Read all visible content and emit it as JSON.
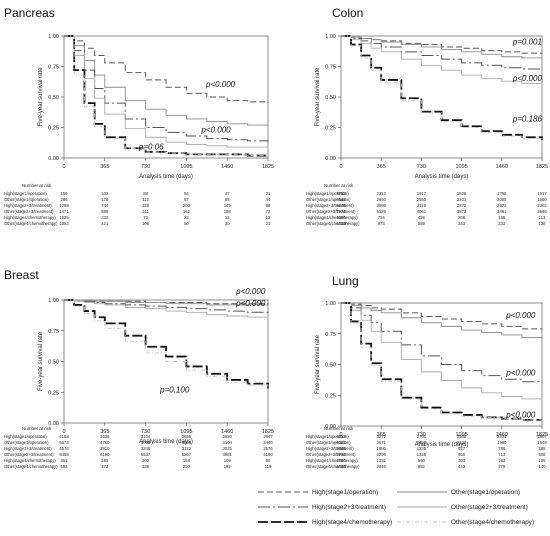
{
  "chart_data": [
    {
      "type": "line",
      "title": "Pancreas",
      "xlabel": "Analysis time (days)",
      "ylabel": "Five-year survival rate",
      "xlim": [
        0,
        1825
      ],
      "ylim": [
        0,
        1
      ],
      "xticks": [
        "0",
        "365",
        "730",
        "1095",
        "1460",
        "1825"
      ],
      "yticks": [
        "0.00",
        "0.25",
        "0.50",
        "0.75",
        "1.00"
      ],
      "x": [
        0,
        91,
        183,
        274,
        365,
        548,
        730,
        913,
        1095,
        1278,
        1460,
        1643,
        1825
      ],
      "series": [
        {
          "style": "high1",
          "values": [
            1.0,
            0.96,
            0.9,
            0.84,
            0.78,
            0.7,
            0.64,
            0.58,
            0.53,
            0.5,
            0.47,
            0.46,
            0.45
          ]
        },
        {
          "style": "other1",
          "values": [
            1.0,
            0.92,
            0.8,
            0.68,
            0.58,
            0.47,
            0.4,
            0.35,
            0.32,
            0.3,
            0.28,
            0.27,
            0.27
          ]
        },
        {
          "style": "high23",
          "values": [
            1.0,
            0.88,
            0.72,
            0.57,
            0.45,
            0.32,
            0.25,
            0.21,
            0.18,
            0.16,
            0.15,
            0.14,
            0.13
          ]
        },
        {
          "style": "other23",
          "values": [
            1.0,
            0.84,
            0.65,
            0.49,
            0.36,
            0.24,
            0.17,
            0.13,
            0.11,
            0.1,
            0.09,
            0.09,
            0.08
          ]
        },
        {
          "style": "high4",
          "values": [
            1.0,
            0.72,
            0.45,
            0.28,
            0.17,
            0.08,
            0.05,
            0.04,
            0.03,
            0.03,
            0.03,
            0.02,
            0.02
          ]
        },
        {
          "style": "other4",
          "values": [
            1.0,
            0.68,
            0.42,
            0.26,
            0.16,
            0.08,
            0.05,
            0.04,
            0.03,
            0.03,
            0.03,
            0.02,
            0.02
          ]
        }
      ],
      "annotations": [
        {
          "text": "p<0.000",
          "x": 1270,
          "y": 0.58
        },
        {
          "text": "p<0.000",
          "x": 1230,
          "y": 0.21
        },
        {
          "text": "p=0.06",
          "x": 670,
          "y": 0.07
        }
      ],
      "risk": {
        "header": "Number at risk",
        "rows": [
          {
            "label": "High(stage1/operation)",
            "values": [
              "159",
              "103",
              "88",
              "54",
              "47",
              "31"
            ]
          },
          {
            "label": "Other(stage1/operation)",
            "values": [
              "286",
              "179",
              "112",
              "87",
              "68",
              "44"
            ]
          },
          {
            "label": "High(stage2+3/treatment)",
            "values": [
              "1298",
              "744",
              "328",
              "200",
              "145",
              "98"
            ]
          },
          {
            "label": "Other(stage2+3/treatment)",
            "values": [
              "1471",
              "689",
              "311",
              "162",
              "108",
              "72"
            ]
          },
          {
            "label": "High(stage4/chemotherapy)",
            "values": [
              "1525",
              "332",
              "73",
              "22",
              "12",
              "12"
            ]
          },
          {
            "label": "Other(stage4/chemotherapy)",
            "values": [
              "1853",
              "421",
              "106",
              "50",
              "30",
              "23"
            ]
          }
        ]
      }
    },
    {
      "type": "line",
      "title": "Colon",
      "xlabel": "Analysis time (days)",
      "ylabel": "Five-year survival rate",
      "xlim": [
        0,
        1825
      ],
      "ylim": [
        0,
        1
      ],
      "xticks": [
        "0",
        "365",
        "730",
        "1095",
        "1460",
        "1825"
      ],
      "yticks": [
        "0.00",
        "0.25",
        "0.50",
        "0.75",
        "1.00"
      ],
      "x": [
        0,
        91,
        183,
        274,
        365,
        548,
        730,
        913,
        1095,
        1278,
        1460,
        1643,
        1825
      ],
      "series": [
        {
          "style": "high1",
          "values": [
            1.0,
            0.99,
            0.98,
            0.97,
            0.96,
            0.94,
            0.93,
            0.91,
            0.9,
            0.88,
            0.87,
            0.86,
            0.85
          ]
        },
        {
          "style": "other1",
          "values": [
            1.0,
            0.99,
            0.98,
            0.97,
            0.95,
            0.93,
            0.91,
            0.89,
            0.87,
            0.85,
            0.83,
            0.82,
            0.8
          ]
        },
        {
          "style": "high23",
          "values": [
            1.0,
            0.98,
            0.96,
            0.94,
            0.91,
            0.87,
            0.84,
            0.81,
            0.78,
            0.76,
            0.74,
            0.73,
            0.72
          ]
        },
        {
          "style": "other23",
          "values": [
            1.0,
            0.97,
            0.94,
            0.9,
            0.87,
            0.81,
            0.76,
            0.72,
            0.68,
            0.65,
            0.63,
            0.61,
            0.6
          ]
        },
        {
          "style": "high4",
          "values": [
            1.0,
            0.93,
            0.84,
            0.74,
            0.64,
            0.49,
            0.38,
            0.31,
            0.26,
            0.22,
            0.19,
            0.17,
            0.15
          ]
        },
        {
          "style": "other4",
          "values": [
            1.0,
            0.92,
            0.82,
            0.72,
            0.62,
            0.47,
            0.37,
            0.3,
            0.25,
            0.21,
            0.18,
            0.16,
            0.14
          ]
        }
      ],
      "annotations": [
        {
          "text": "p=0.001",
          "x": 1560,
          "y": 0.93
        },
        {
          "text": "p<0.000",
          "x": 1560,
          "y": 0.63
        },
        {
          "text": "p=0.186",
          "x": 1560,
          "y": 0.3
        }
      ],
      "risk": {
        "header": "Number at risk",
        "rows": [
          {
            "label": "High(stage1/operation)",
            "values": [
              "2753",
              "2313",
              "1917",
              "1826",
              "1758",
              "1517"
            ]
          },
          {
            "label": "Other(stage1/operation)",
            "values": [
              "3619",
              "2694",
              "2550",
              "2201",
              "2005",
              "1660"
            ]
          },
          {
            "label": "High(stage2+3/treatment)",
            "values": [
              "4675",
              "3598",
              "3119",
              "2872",
              "2671",
              "2302"
            ]
          },
          {
            "label": "Other(stage2+3/treatment)",
            "values": [
              "7274",
              "5129",
              "4061",
              "3873",
              "3461",
              "2686"
            ]
          },
          {
            "label": "High(stage4/chemotherapy)",
            "values": [
              "1096",
              "734",
              "426",
              "268",
              "188",
              "113"
            ]
          },
          {
            "label": "Other(stage4/chemotherapy)",
            "values": [
              "1639",
              "973",
              "589",
              "343",
              "233",
              "136"
            ]
          }
        ]
      }
    },
    {
      "type": "line",
      "title": "Breast",
      "xlabel": "Analysis time (days)",
      "ylabel": "Five-year survival rate",
      "xlim": [
        0,
        1825
      ],
      "ylim": [
        0,
        1
      ],
      "xticks": [
        "0",
        "365",
        "730",
        "1095",
        "1460",
        "1825"
      ],
      "yticks": [
        "0.00",
        "0.25",
        "0.50",
        "0.75",
        "1.00"
      ],
      "x": [
        0,
        91,
        183,
        274,
        365,
        548,
        730,
        913,
        1095,
        1278,
        1460,
        1643,
        1825
      ],
      "series": [
        {
          "style": "high1",
          "values": [
            1.0,
            1.0,
            0.99,
            0.99,
            0.99,
            0.99,
            0.98,
            0.98,
            0.98,
            0.97,
            0.97,
            0.97,
            0.96
          ]
        },
        {
          "style": "other1",
          "values": [
            1.0,
            1.0,
            0.99,
            0.99,
            0.99,
            0.98,
            0.98,
            0.97,
            0.97,
            0.96,
            0.96,
            0.96,
            0.95
          ]
        },
        {
          "style": "high23",
          "values": [
            1.0,
            0.99,
            0.99,
            0.98,
            0.97,
            0.96,
            0.95,
            0.94,
            0.93,
            0.92,
            0.91,
            0.9,
            0.89
          ]
        },
        {
          "style": "other23",
          "values": [
            1.0,
            0.99,
            0.98,
            0.97,
            0.96,
            0.94,
            0.93,
            0.91,
            0.9,
            0.88,
            0.87,
            0.86,
            0.85
          ]
        },
        {
          "style": "high4",
          "values": [
            1.0,
            0.96,
            0.91,
            0.86,
            0.81,
            0.71,
            0.62,
            0.54,
            0.46,
            0.4,
            0.35,
            0.32,
            0.28
          ]
        },
        {
          "style": "other4",
          "values": [
            1.0,
            0.95,
            0.89,
            0.83,
            0.77,
            0.66,
            0.57,
            0.5,
            0.43,
            0.38,
            0.33,
            0.31,
            0.29
          ]
        }
      ],
      "annotations": [
        {
          "text": "p<0.000",
          "x": 1540,
          "y": 1.05
        },
        {
          "text": "p<0.000",
          "x": 1540,
          "y": 0.95
        },
        {
          "text": "p=0.100",
          "x": 860,
          "y": 0.25
        }
      ],
      "risk": {
        "header": "Number at risk",
        "rows": [
          {
            "label": "High(stage1/operation)",
            "values": [
              "4168",
              "3638",
              "3104",
              "2655",
              "3020",
              "2647"
            ]
          },
          {
            "label": "Other(stage1/operation)",
            "values": [
              "5573",
              "4760",
              "4052",
              "4246",
              "4104",
              "3440"
            ]
          },
          {
            "label": "High(stage2+3/treatment)",
            "values": [
              "4576",
              "3910",
              "3245",
              "3122",
              "3025",
              "2576"
            ]
          },
          {
            "label": "Other(stage2+3/treatment)",
            "values": [
              "8458",
              "6190",
              "5537",
              "5267",
              "4981",
              "4180"
            ]
          },
          {
            "label": "High(stage4/chemotherapy)",
            "values": [
              "351",
              "285",
              "202",
              "154",
              "109",
              "80"
            ]
          },
          {
            "label": "Other(stage4/chemotherapy)",
            "values": [
              "693",
              "473",
              "339",
              "250",
              "182",
              "119"
            ]
          }
        ]
      }
    },
    {
      "type": "line",
      "title": "Lung",
      "xlabel": "Analysis time (days)",
      "ylabel": "Five-year survival rate",
      "xlim": [
        0,
        1825
      ],
      "ylim": [
        0,
        1
      ],
      "xticks": [
        "0",
        "365",
        "730",
        "1095",
        "1460",
        "1825"
      ],
      "yticks": [
        "0.00",
        "0.25",
        "0.50",
        "0.75",
        "1.00"
      ],
      "x": [
        0,
        91,
        183,
        274,
        365,
        548,
        730,
        913,
        1095,
        1278,
        1460,
        1643,
        1825
      ],
      "series": [
        {
          "style": "high1",
          "values": [
            1.0,
            0.99,
            0.98,
            0.96,
            0.95,
            0.92,
            0.89,
            0.87,
            0.85,
            0.83,
            0.81,
            0.79,
            0.78
          ]
        },
        {
          "style": "other1",
          "values": [
            1.0,
            0.98,
            0.96,
            0.94,
            0.92,
            0.88,
            0.84,
            0.81,
            0.78,
            0.76,
            0.74,
            0.72,
            0.7
          ]
        },
        {
          "style": "high23",
          "values": [
            1.0,
            0.96,
            0.9,
            0.84,
            0.77,
            0.66,
            0.57,
            0.5,
            0.45,
            0.41,
            0.38,
            0.36,
            0.35
          ]
        },
        {
          "style": "other23",
          "values": [
            1.0,
            0.94,
            0.86,
            0.77,
            0.68,
            0.54,
            0.44,
            0.37,
            0.31,
            0.27,
            0.24,
            0.22,
            0.21
          ]
        },
        {
          "style": "high4",
          "values": [
            1.0,
            0.85,
            0.67,
            0.51,
            0.38,
            0.23,
            0.15,
            0.11,
            0.09,
            0.07,
            0.06,
            0.05,
            0.05
          ]
        },
        {
          "style": "other4",
          "values": [
            1.0,
            0.83,
            0.64,
            0.49,
            0.36,
            0.22,
            0.14,
            0.1,
            0.08,
            0.07,
            0.06,
            0.05,
            0.04
          ]
        }
      ],
      "annotations": [
        {
          "text": "p<0.000",
          "x": 1500,
          "y": 0.88
        },
        {
          "text": "p<0.000",
          "x": 1500,
          "y": 0.41
        },
        {
          "text": "p<0.000",
          "x": 1500,
          "y": 0.07
        }
      ],
      "risk": {
        "header": "Number at risk",
        "rows": [
          {
            "label": "High(stage1/operation)",
            "values": [
              "4013",
              "3272",
              "2704",
              "2508",
              "2334",
              "1807"
            ]
          },
          {
            "label": "Other(stage1/operation)",
            "values": [
              "4023",
              "2671",
              "2459",
              "2222",
              "1980",
              "1548"
            ]
          },
          {
            "label": "High(stage2+3/treatment)",
            "values": [
              "2865",
              "1986",
              "1235",
              "927",
              "786",
              "585"
            ]
          },
          {
            "label": "Other(stage2+3/treatment)",
            "values": [
              "3755",
              "2299",
              "1326",
              "955",
              "713",
              "506"
            ]
          },
          {
            "label": "High(stage4/chemotherapy)",
            "values": [
              "2706",
              "1332",
              "560",
              "303",
              "183",
              "105"
            ]
          },
          {
            "label": "Other(stage4/chemotherapy)",
            "values": [
              "4606",
              "2048",
              "852",
              "443",
              "279",
              "140"
            ]
          }
        ]
      }
    }
  ],
  "legend": [
    {
      "style": "high1",
      "label": "High(stage1/operation)"
    },
    {
      "style": "other1",
      "label": "Other(stage1/operation)"
    },
    {
      "style": "high23",
      "label": "High(stage2+3/treatment)"
    },
    {
      "style": "other23",
      "label": "Other(stage2+3/treatment)"
    },
    {
      "style": "high4",
      "label": "High(stage4/chemotherapy)"
    },
    {
      "style": "other4",
      "label": "Other(stage4/chemotherapy)"
    }
  ]
}
